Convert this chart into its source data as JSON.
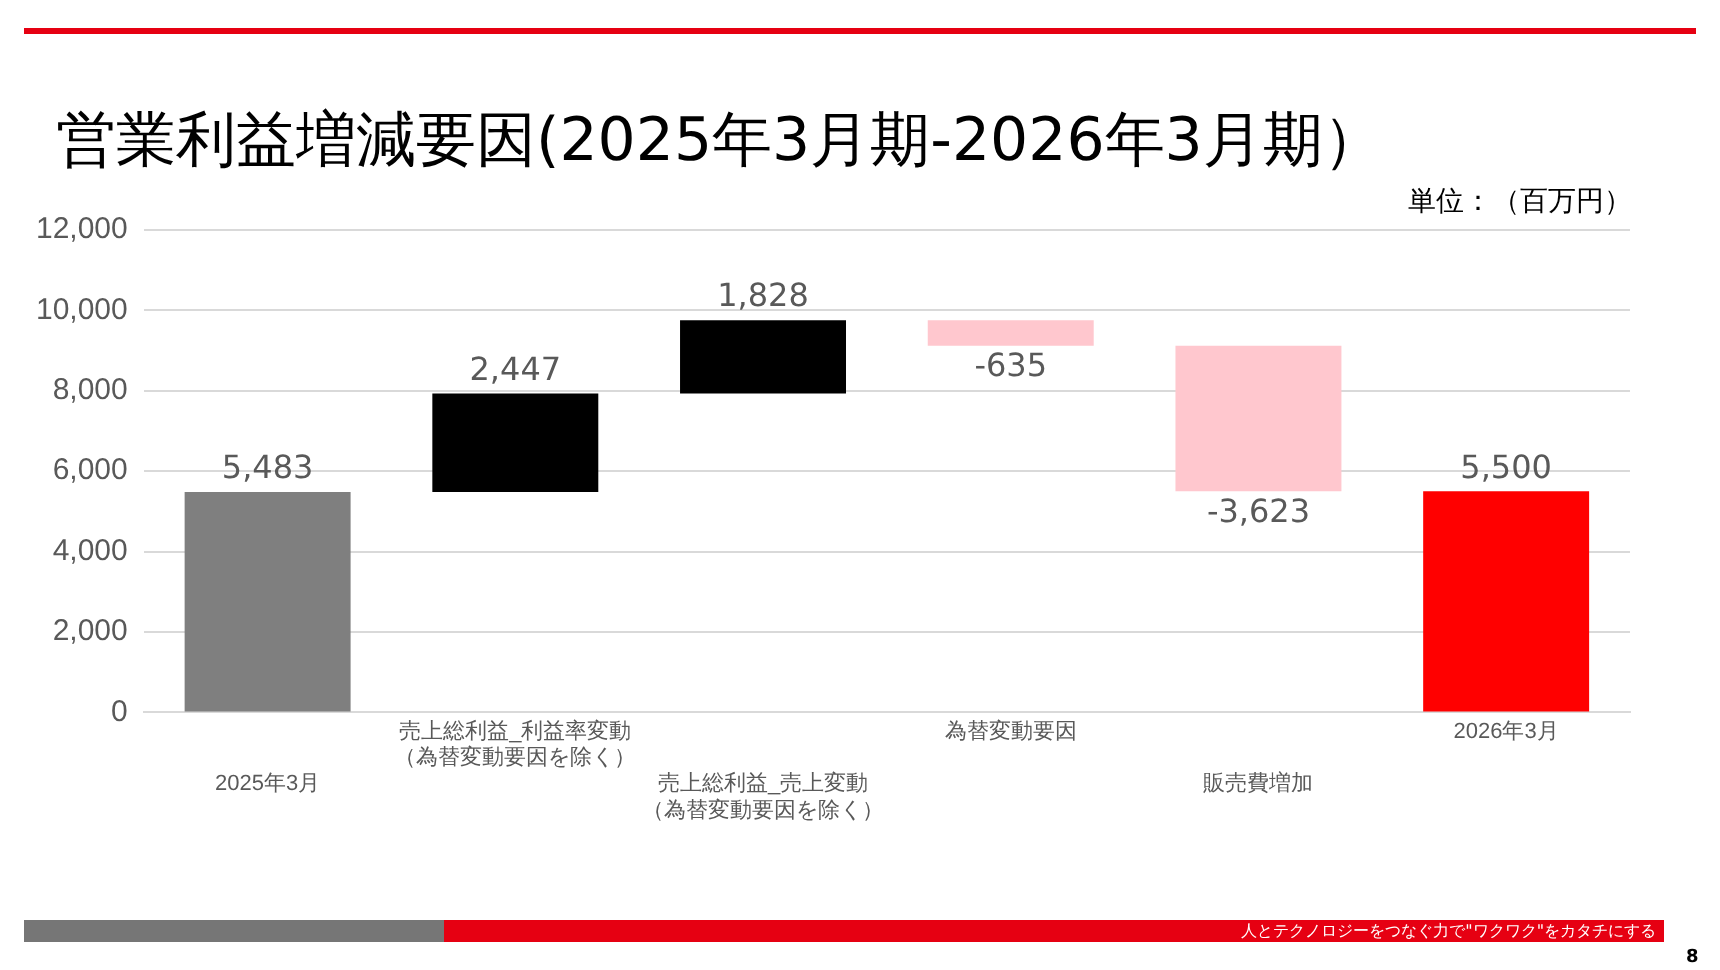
{
  "chart_data": {
    "type": "bar",
    "title": "営業利益増減要因(2025年3月期-2026年3月期）",
    "categories": [
      "2025年3月",
      "売上総利益_利益率変動（為替変動要因を除く）",
      "売上総利益_売上変動（為替変動要因を除く）",
      "為替変動要因",
      "販売費増加",
      "2026年3月"
    ],
    "values": [
      5483,
      2447,
      1828,
      -635,
      -3623,
      5500
    ],
    "base": [
      0,
      5483,
      7930,
      9758,
      9123,
      0
    ],
    "colors": [
      "#7f7f7f",
      "#000000",
      "#000000",
      "#ffc7ce",
      "#ffc7ce",
      "#ff0000"
    ],
    "value_labels": [
      "5,483",
      "2,447",
      "1,828",
      "-635",
      "-3,623",
      "5,500"
    ],
    "ylim": [
      0,
      12000
    ],
    "yticks": [
      {
        "value": 0,
        "label": "0"
      },
      {
        "value": 2000,
        "label": "2,000"
      },
      {
        "value": 4000,
        "label": "4,000"
      },
      {
        "value": 6000,
        "label": "6,000"
      },
      {
        "value": 8000,
        "label": "8,000"
      },
      {
        "value": 10000,
        "label": "10,000"
      },
      {
        "value": 12000,
        "label": "12,000"
      }
    ],
    "grid": "y",
    "legend": false,
    "annotations": [
      "単位：（百万円）",
      "人とテクノロジーをつなぐ力で\"ワクワク\"をカタチにする",
      "8"
    ]
  }
}
